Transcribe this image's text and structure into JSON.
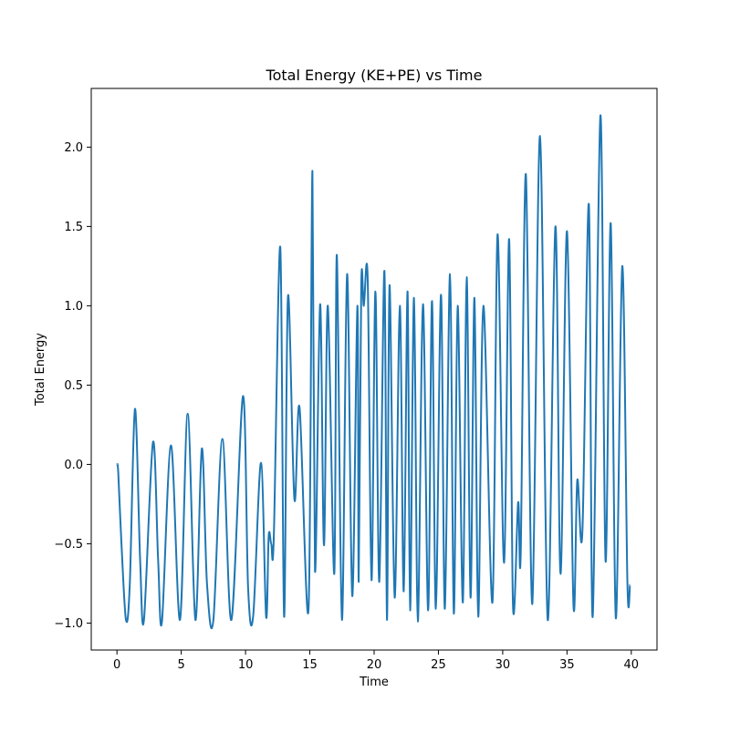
{
  "chart_data": {
    "type": "line",
    "title": "Total Energy (KE+PE) vs Time",
    "xlabel": "Time",
    "ylabel": "Total Energy",
    "xlim": [
      -2,
      42
    ],
    "ylim": [
      -1.17,
      2.37
    ],
    "xticks": [
      0,
      5,
      10,
      15,
      20,
      25,
      30,
      35,
      40
    ],
    "xtick_labels": [
      "0",
      "5",
      "10",
      "15",
      "20",
      "25",
      "30",
      "35",
      "40"
    ],
    "yticks": [
      -1.0,
      -0.5,
      0.0,
      0.5,
      1.0,
      1.5,
      2.0
    ],
    "ytick_labels": [
      "−1.0",
      "−0.5",
      "0.0",
      "0.5",
      "1.0",
      "1.5",
      "2.0"
    ],
    "grid": false,
    "line_color": "#1f77b4",
    "series": [
      {
        "x": [
          0,
          0.1,
          0.35,
          0.7,
          1.0,
          1.4,
          1.8,
          2.1,
          2.8,
          3.2,
          3.5,
          4.2,
          4.9,
          5.5,
          6.1,
          6.6,
          7.0,
          7.5,
          8.2,
          8.9,
          9.8,
          10.2,
          10.6,
          11.2,
          11.6,
          11.8,
          12.0,
          12.2,
          12.7,
          13.0,
          13.3,
          13.8,
          14.2,
          14.9,
          15.2,
          15.4,
          15.8,
          16.1,
          16.4,
          16.9,
          17.1,
          17.5,
          17.9,
          18.3,
          18.7,
          18.8,
          19.0,
          19.2,
          19.5,
          19.8,
          20.1,
          20.4,
          20.8,
          21.0,
          21.2,
          21.6,
          22.0,
          22.3,
          22.6,
          22.8,
          23.1,
          23.4,
          23.8,
          24.2,
          24.5,
          24.8,
          25.2,
          25.5,
          25.9,
          26.2,
          26.5,
          26.9,
          27.2,
          27.5,
          27.8,
          28.1,
          28.5,
          29.2,
          29.6,
          30.1,
          30.5,
          30.8,
          31.2,
          31.4,
          31.8,
          32.3,
          32.9,
          33.5,
          34.1,
          34.5,
          35.0,
          35.5,
          35.8,
          36.2,
          36.7,
          37.0,
          37.6,
          38.0,
          38.4,
          38.8,
          39.3,
          39.7,
          39.9
        ],
        "y": [
          0.0,
          -0.05,
          -0.5,
          -0.98,
          -0.75,
          0.35,
          -0.6,
          -0.98,
          0.14,
          -0.6,
          -0.99,
          0.12,
          -0.98,
          0.32,
          -0.98,
          0.1,
          -0.75,
          -0.98,
          0.16,
          -0.98,
          0.43,
          -0.78,
          -0.95,
          0.01,
          -0.96,
          -0.45,
          -0.5,
          -0.45,
          1.37,
          -0.96,
          1.06,
          -0.22,
          0.36,
          -0.91,
          1.85,
          -0.67,
          1.01,
          -0.51,
          1.0,
          -0.69,
          1.32,
          -0.98,
          1.2,
          -0.83,
          1.0,
          -0.74,
          1.13,
          1.0,
          1.17,
          -0.73,
          1.09,
          -0.74,
          1.22,
          -0.98,
          1.13,
          -0.84,
          1.0,
          -0.8,
          1.09,
          -0.92,
          1.05,
          -0.99,
          1.01,
          -0.92,
          1.03,
          -0.91,
          1.07,
          -0.91,
          1.2,
          -0.94,
          1.0,
          -0.87,
          1.18,
          -0.84,
          1.05,
          -0.96,
          1.0,
          -0.87,
          1.45,
          -0.62,
          1.42,
          -0.89,
          -0.24,
          -0.56,
          1.83,
          -0.88,
          2.07,
          -0.98,
          1.5,
          -0.69,
          1.47,
          -0.88,
          -0.1,
          -0.42,
          1.64,
          -0.96,
          2.2,
          -0.61,
          1.52,
          -0.97,
          1.25,
          -0.75,
          -0.76
        ]
      }
    ]
  }
}
